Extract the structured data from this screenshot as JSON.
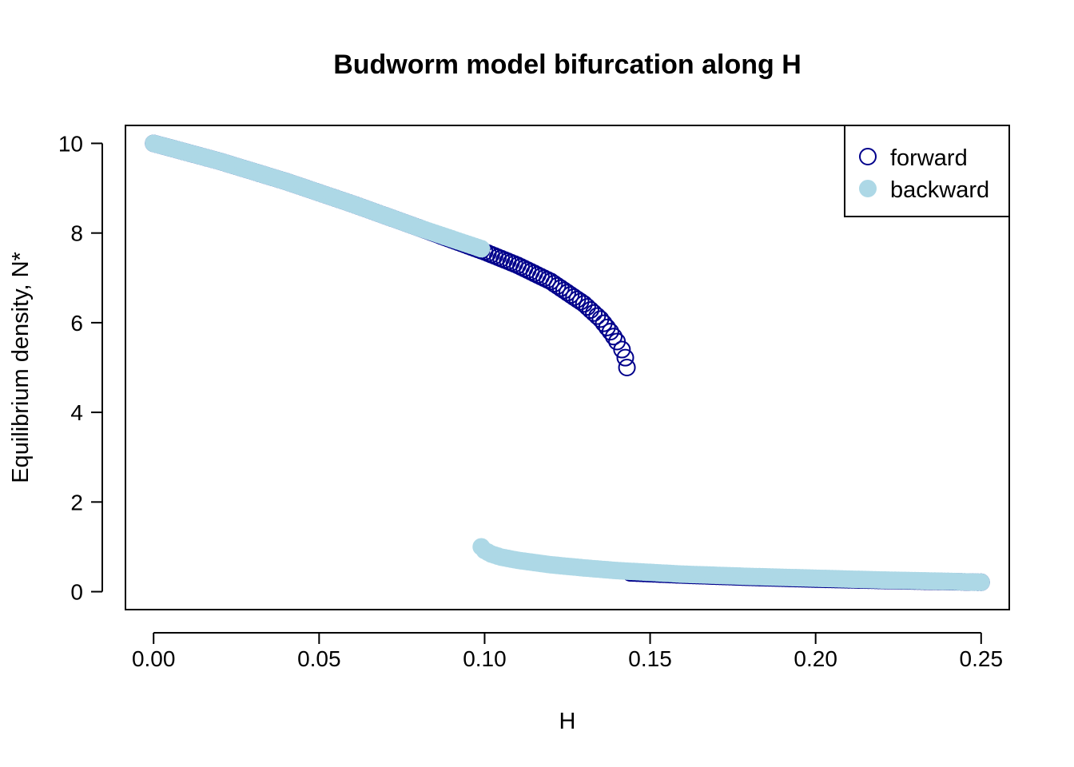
{
  "chart_data": {
    "type": "scatter",
    "title": "Budworm model bifurcation along H",
    "xlabel": "H",
    "ylabel": "Equilibrium density, N*",
    "xlim": [
      -0.0085,
      0.2585
    ],
    "ylim": [
      -0.4,
      10.4
    ],
    "xticks": [
      0.0,
      0.05,
      0.1,
      0.15,
      0.2,
      0.25
    ],
    "xtick_labels": [
      "0.00",
      "0.05",
      "0.10",
      "0.15",
      "0.20",
      "0.25"
    ],
    "yticks": [
      0,
      2,
      4,
      6,
      8,
      10
    ],
    "ytick_labels": [
      "0",
      "2",
      "4",
      "6",
      "8",
      "10"
    ],
    "grid": false,
    "legend": {
      "position": "top-right",
      "entries": [
        "forward",
        "backward"
      ]
    },
    "series": [
      {
        "name": "forward",
        "marker": "open-circle",
        "color": "#00008B",
        "branches": [
          {
            "x": [
              0.0,
              0.02,
              0.04,
              0.06,
              0.08,
              0.1,
              0.11,
              0.12,
              0.13,
              0.135,
              0.138,
              0.14,
              0.1415,
              0.1425,
              0.143
            ],
            "y": [
              10.0,
              9.6,
              9.15,
              8.65,
              8.12,
              7.58,
              7.28,
              6.92,
              6.42,
              6.08,
              5.8,
              5.58,
              5.4,
              5.22,
              5.0
            ]
          },
          {
            "x": [
              0.144,
              0.16,
              0.18,
              0.2,
              0.22,
              0.24,
              0.25
            ],
            "y": [
              0.42,
              0.37,
              0.32,
              0.28,
              0.25,
              0.225,
              0.21
            ]
          }
        ]
      },
      {
        "name": "backward",
        "marker": "filled-circle",
        "color": "#ADD8E6",
        "branches": [
          {
            "x": [
              0.0,
              0.02,
              0.04,
              0.06,
              0.08,
              0.099
            ],
            "y": [
              10.0,
              9.6,
              9.15,
              8.65,
              8.12,
              7.65
            ]
          },
          {
            "x": [
              0.099,
              0.1,
              0.102,
              0.105,
              0.11,
              0.12,
              0.13,
              0.14,
              0.16,
              0.18,
              0.2,
              0.22,
              0.24,
              0.25
            ],
            "y": [
              1.0,
              0.92,
              0.84,
              0.77,
              0.7,
              0.6,
              0.53,
              0.47,
              0.39,
              0.34,
              0.3,
              0.26,
              0.23,
              0.21
            ]
          }
        ]
      }
    ]
  }
}
